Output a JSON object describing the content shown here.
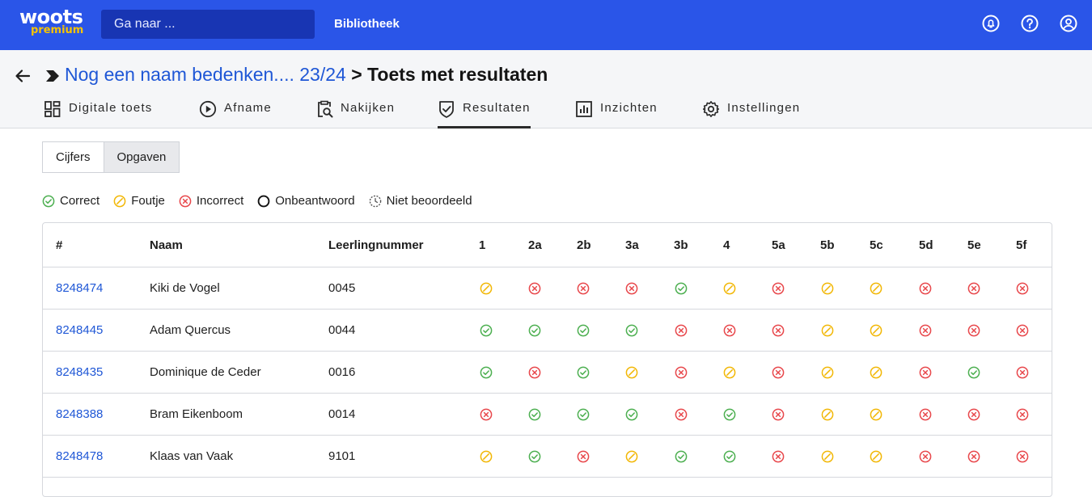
{
  "topbar": {
    "logo_main": "woots",
    "logo_sub": "premium",
    "search_placeholder": "Ga naar ...",
    "nav_label": "Bibliotheek",
    "icons": [
      "bell-icon",
      "help-icon",
      "account-icon"
    ]
  },
  "breadcrumb": {
    "course": "Nog een naam bedenken.... 23/24",
    "separator": ">",
    "current": "Toets met resultaten"
  },
  "tabs": [
    {
      "label": "Digitale toets",
      "icon": "grid-icon",
      "active": false
    },
    {
      "label": "Afname",
      "icon": "play-icon",
      "active": false
    },
    {
      "label": "Nakijken",
      "icon": "review-icon",
      "active": false
    },
    {
      "label": "Resultaten",
      "icon": "shield-check-icon",
      "active": true
    },
    {
      "label": "Inzichten",
      "icon": "bar-chart-icon",
      "active": false
    },
    {
      "label": "Instellingen",
      "icon": "gear-icon",
      "active": false
    }
  ],
  "segments": [
    {
      "label": "Cijfers",
      "selected": false
    },
    {
      "label": "Opgaven",
      "selected": true
    }
  ],
  "legend": [
    {
      "key": "c",
      "label": "Correct"
    },
    {
      "key": "f",
      "label": "Foutje"
    },
    {
      "key": "i",
      "label": "Incorrect"
    },
    {
      "key": "o",
      "label": "Onbeantwoord"
    },
    {
      "key": "n",
      "label": "Niet beoordeeld"
    }
  ],
  "colors": {
    "brand": "#2a55e8",
    "correct": "#4caf50",
    "foutje": "#f2b705",
    "incorrect": "#e8474b",
    "link": "#1f57d6"
  },
  "table": {
    "columns": [
      "#",
      "Naam",
      "Leerlingnummer",
      "1",
      "2a",
      "2b",
      "3a",
      "3b",
      "4",
      "5a",
      "5b",
      "5c",
      "5d",
      "5e",
      "5f"
    ],
    "rows": [
      {
        "id": "8248474",
        "name": "Kiki de Vogel",
        "number": "0045",
        "results": [
          "f",
          "i",
          "i",
          "i",
          "c",
          "f",
          "i",
          "f",
          "f",
          "i",
          "i",
          "i"
        ]
      },
      {
        "id": "8248445",
        "name": "Adam Quercus",
        "number": "0044",
        "results": [
          "c",
          "c",
          "c",
          "c",
          "i",
          "i",
          "i",
          "f",
          "f",
          "i",
          "i",
          "i"
        ]
      },
      {
        "id": "8248435",
        "name": "Dominique de Ceder",
        "number": "0016",
        "results": [
          "c",
          "i",
          "c",
          "f",
          "i",
          "f",
          "i",
          "f",
          "f",
          "i",
          "c",
          "i"
        ]
      },
      {
        "id": "8248388",
        "name": "Bram Eikenboom",
        "number": "0014",
        "results": [
          "i",
          "c",
          "c",
          "c",
          "i",
          "c",
          "i",
          "f",
          "f",
          "i",
          "i",
          "i"
        ]
      },
      {
        "id": "8248478",
        "name": "Klaas van Vaak",
        "number": "9101",
        "results": [
          "f",
          "c",
          "i",
          "f",
          "c",
          "c",
          "i",
          "f",
          "f",
          "i",
          "i",
          "i"
        ]
      }
    ]
  }
}
